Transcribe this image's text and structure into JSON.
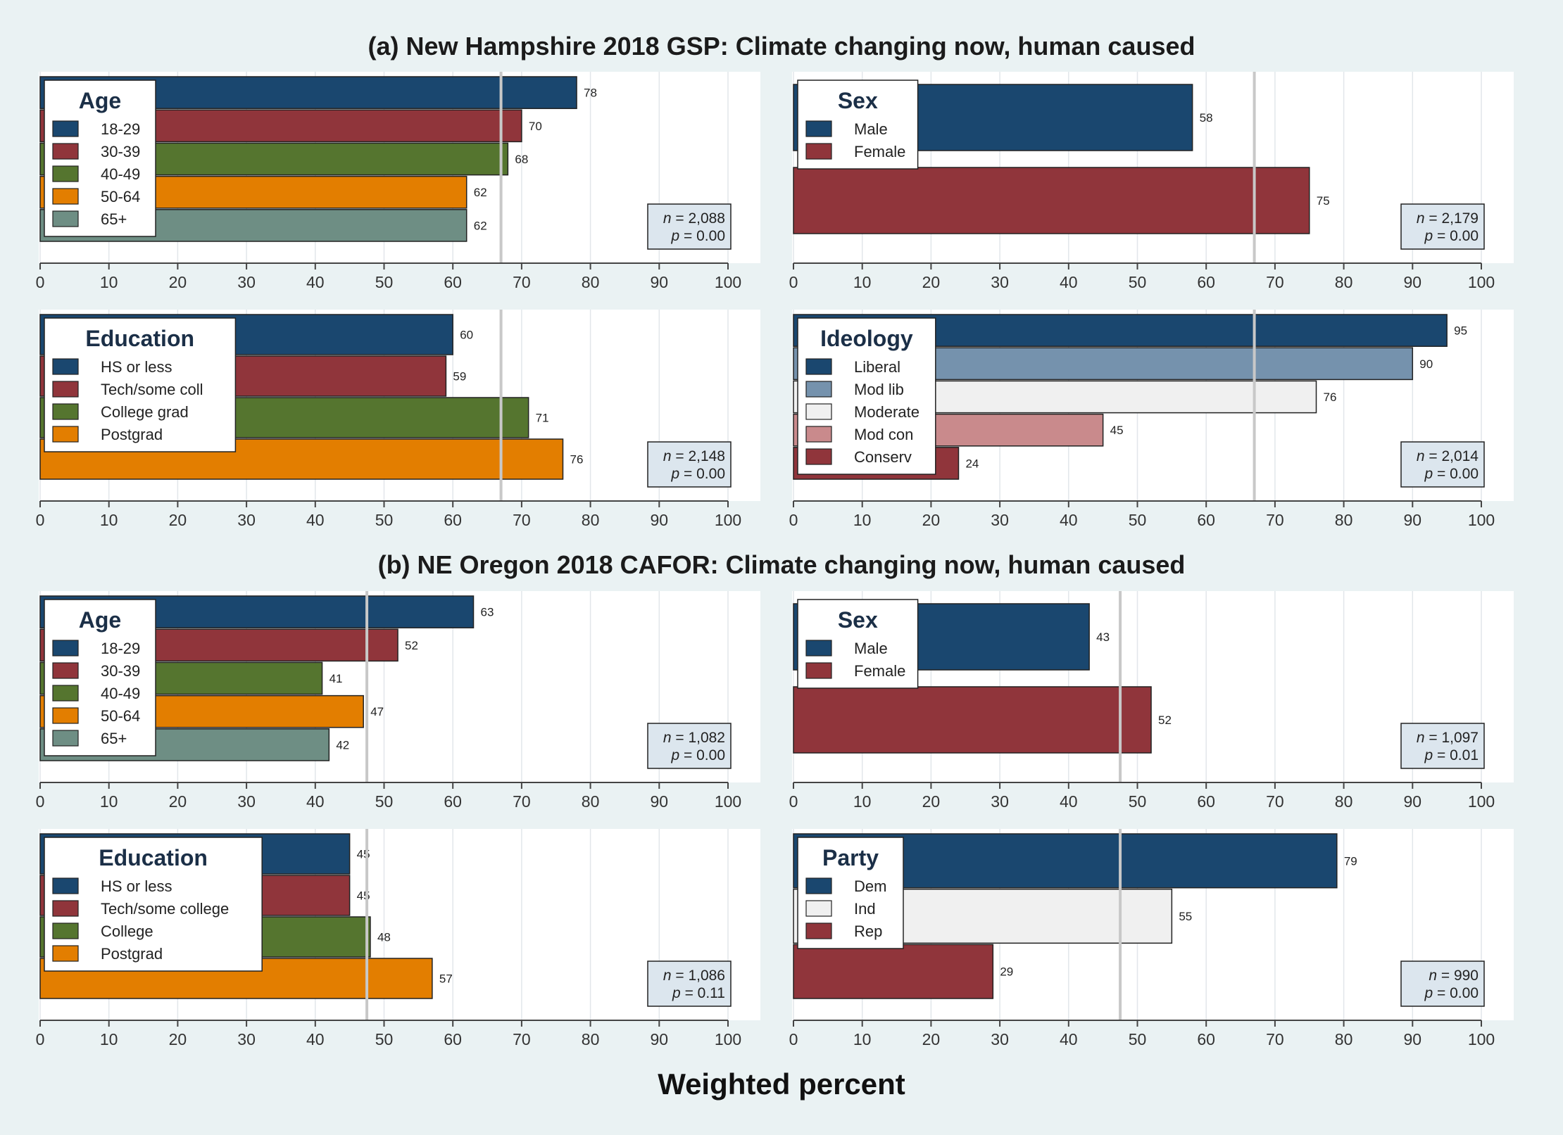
{
  "colors": {
    "background": "#eaf2f3",
    "panel": "#ffffff",
    "grid": "#e2e6ea",
    "reference_line": "#c8c8c8",
    "stat_box": "#dce6ee"
  },
  "chart_data": {
    "type": "bar",
    "xlabel": "Weighted percent",
    "xlim": [
      0,
      100
    ],
    "ticks": [
      "0",
      "10",
      "20",
      "30",
      "40",
      "50",
      "60",
      "70",
      "80",
      "90",
      "100"
    ],
    "sections": [
      {
        "title": "(a) New Hampshire 2018 GSP: Climate changing now, human caused",
        "panels": [
          {
            "legend_title": "Age",
            "reference": 67,
            "stats": {
              "n": "2,088",
              "p": "0.00"
            },
            "bars": [
              {
                "label": "18-29",
                "value": 78,
                "value_label": "78",
                "color": "#1a476f"
              },
              {
                "label": "30-39",
                "value": 70,
                "value_label": "70",
                "color": "#90353b"
              },
              {
                "label": "40-49",
                "value": 68,
                "value_label": "68",
                "color": "#55752f"
              },
              {
                "label": "50-64",
                "value": 62,
                "value_label": "62",
                "color": "#e37e00"
              },
              {
                "label": "65+",
                "value": 62,
                "value_label": "62",
                "color": "#6e8e84"
              }
            ]
          },
          {
            "legend_title": "Sex",
            "reference": 67,
            "stats": {
              "n": "2,179",
              "p": "0.00"
            },
            "bars": [
              {
                "label": "Male",
                "value": 58,
                "value_label": "58",
                "color": "#1a476f"
              },
              {
                "label": "Female",
                "value": 75,
                "value_label": "75",
                "color": "#90353b"
              }
            ]
          },
          {
            "legend_title": "Education",
            "reference": 67,
            "stats": {
              "n": "2,148",
              "p": "0.00"
            },
            "bars": [
              {
                "label": "HS or less",
                "value": 60,
                "value_label": "60",
                "color": "#1a476f"
              },
              {
                "label": "Tech/some coll",
                "value": 59,
                "value_label": "59",
                "color": "#90353b"
              },
              {
                "label": "College grad",
                "value": 71,
                "value_label": "71",
                "color": "#55752f"
              },
              {
                "label": "Postgrad",
                "value": 76,
                "value_label": "76",
                "color": "#e37e00"
              }
            ]
          },
          {
            "legend_title": "Ideology",
            "reference": 67,
            "stats": {
              "n": "2,014",
              "p": "0.00"
            },
            "bars": [
              {
                "label": "Liberal",
                "value": 95,
                "value_label": "95",
                "color": "#1a476f"
              },
              {
                "label": "Mod lib",
                "value": 90,
                "value_label": "90",
                "color": "#7592ad"
              },
              {
                "label": "Moderate",
                "value": 76,
                "value_label": "76",
                "color": "#f0f0f0"
              },
              {
                "label": "Mod con",
                "value": 45,
                "value_label": "45",
                "color": "#c98a8c"
              },
              {
                "label": "Conserv",
                "value": 24,
                "value_label": "24",
                "color": "#90353b"
              }
            ]
          }
        ]
      },
      {
        "title": "(b) NE Oregon 2018 CAFOR: Climate changing now, human caused",
        "panels": [
          {
            "legend_title": "Age",
            "reference": 47.5,
            "stats": {
              "n": "1,082",
              "p": "0.00"
            },
            "bars": [
              {
                "label": "18-29",
                "value": 63,
                "value_label": "63",
                "color": "#1a476f"
              },
              {
                "label": "30-39",
                "value": 52,
                "value_label": "52",
                "color": "#90353b"
              },
              {
                "label": "40-49",
                "value": 41,
                "value_label": "41",
                "color": "#55752f"
              },
              {
                "label": "50-64",
                "value": 47,
                "value_label": "47",
                "color": "#e37e00"
              },
              {
                "label": "65+",
                "value": 42,
                "value_label": "42",
                "color": "#6e8e84"
              }
            ]
          },
          {
            "legend_title": "Sex",
            "reference": 47.5,
            "stats": {
              "n": "1,097",
              "p": "0.01"
            },
            "bars": [
              {
                "label": "Male",
                "value": 43,
                "value_label": "43",
                "color": "#1a476f"
              },
              {
                "label": "Female",
                "value": 52,
                "value_label": "52",
                "color": "#90353b"
              }
            ]
          },
          {
            "legend_title": "Education",
            "reference": 47.5,
            "stats": {
              "n": "1,086",
              "p": "0.11"
            },
            "bars": [
              {
                "label": "HS or less",
                "value": 45,
                "value_label": "45",
                "color": "#1a476f"
              },
              {
                "label": "Tech/some college",
                "value": 45,
                "value_label": "45",
                "color": "#90353b"
              },
              {
                "label": "College",
                "value": 48,
                "value_label": "48",
                "color": "#55752f"
              },
              {
                "label": "Postgrad",
                "value": 57,
                "value_label": "57",
                "color": "#e37e00"
              }
            ]
          },
          {
            "legend_title": "Party",
            "reference": 47.5,
            "stats": {
              "n": "990",
              "p": "0.00"
            },
            "bars": [
              {
                "label": "Dem",
                "value": 79,
                "value_label": "79",
                "color": "#1a476f"
              },
              {
                "label": "Ind",
                "value": 55,
                "value_label": "55",
                "color": "#f0f0f0"
              },
              {
                "label": "Rep",
                "value": 29,
                "value_label": "29",
                "color": "#90353b"
              }
            ]
          }
        ]
      }
    ]
  }
}
